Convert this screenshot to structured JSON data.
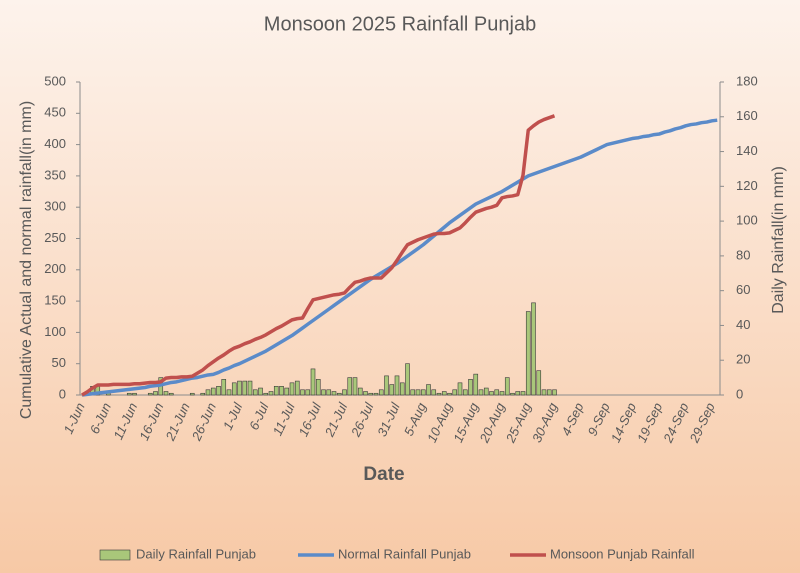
{
  "chart_data": {
    "type": "combo",
    "title": "Monsoon 2025 Rainfall Punjab",
    "x_label": "Date",
    "y_label": "Cumulative  Actual and normal rainfall(in mm)",
    "y2_label": "Daily Rainfall(in mm)",
    "categories": [
      "1-Jun",
      null,
      null,
      null,
      null,
      "6-Jun",
      null,
      null,
      null,
      null,
      "11-Jun",
      null,
      null,
      null,
      null,
      "16-Jun",
      null,
      null,
      null,
      null,
      "21-Jun",
      null,
      null,
      null,
      null,
      "26-Jun",
      null,
      null,
      null,
      null,
      "1-Jul",
      null,
      null,
      null,
      null,
      "6-Jul",
      null,
      null,
      null,
      null,
      "11-Jul",
      null,
      null,
      null,
      null,
      "16-Jul",
      null,
      null,
      null,
      null,
      "21-Jul",
      null,
      null,
      null,
      null,
      "26-Jul",
      null,
      null,
      null,
      null,
      "31-Jul",
      null,
      null,
      null,
      null,
      "5-Aug",
      null,
      null,
      null,
      null,
      "10-Aug",
      null,
      null,
      null,
      null,
      "15-Aug",
      null,
      null,
      null,
      null,
      "20-Aug",
      null,
      null,
      null,
      null,
      "25-Aug",
      null,
      null,
      null,
      null,
      "30-Aug",
      null,
      null,
      null,
      null,
      "4-Sep",
      null,
      null,
      null,
      null,
      "9-Sep",
      null,
      null,
      null,
      null,
      "14-Sep",
      null,
      null,
      null,
      null,
      "19-Sep",
      null,
      null,
      null,
      null,
      "24-Sep",
      null,
      null,
      null,
      null,
      "29-Sep",
      null
    ],
    "ylim": [
      0,
      500
    ],
    "yticks": [
      0,
      50,
      100,
      150,
      200,
      250,
      300,
      350,
      400,
      450,
      500
    ],
    "y2lim": [
      0,
      180
    ],
    "y2ticks": [
      0,
      20,
      40,
      60,
      80,
      100,
      120,
      140,
      160,
      180
    ],
    "legend": "bottom",
    "series": [
      {
        "name": "Daily Rainfall Punjab",
        "type": "bar",
        "axis": "y2",
        "color": "#a9c77a",
        "values": [
          0,
          0,
          5,
          5,
          0,
          1,
          0,
          0,
          0,
          1,
          1,
          0,
          0,
          1,
          2,
          10,
          2,
          1,
          0,
          0,
          0,
          1,
          0,
          1,
          3,
          4,
          5,
          9,
          3,
          7,
          8,
          8,
          8,
          3,
          4,
          1,
          2,
          5,
          5,
          4,
          7,
          8,
          3,
          3,
          15,
          9,
          3,
          3,
          2,
          1,
          3,
          10,
          10,
          4,
          2,
          1,
          1,
          3,
          11,
          6,
          11,
          7,
          18,
          3,
          3,
          3,
          6,
          3,
          1,
          2,
          1,
          3,
          7,
          3,
          9,
          12,
          3,
          4,
          2,
          3,
          2,
          10,
          1,
          2,
          2,
          48,
          53,
          14,
          3,
          3,
          3,
          null,
          null,
          null,
          null,
          null,
          null,
          null,
          null,
          null,
          null,
          null,
          null,
          null,
          null,
          null,
          null,
          null,
          null,
          null,
          null,
          null,
          null,
          null,
          null,
          null,
          null,
          null,
          null,
          null,
          null,
          null
        ]
      },
      {
        "name": "Normal Rainfall Punjab",
        "type": "line",
        "color": "#5b8bc9",
        "values": [
          0,
          1,
          2,
          3,
          4,
          5,
          6,
          7,
          8,
          9,
          10,
          11,
          12,
          14,
          15,
          16,
          18,
          20,
          21,
          23,
          25,
          27,
          28,
          30,
          32,
          33,
          36,
          40,
          43,
          47,
          50,
          54,
          58,
          62,
          66,
          70,
          75,
          80,
          85,
          90,
          95,
          101,
          107,
          113,
          119,
          125,
          131,
          137,
          143,
          149,
          155,
          161,
          167,
          173,
          179,
          185,
          190,
          195,
          200,
          205,
          210,
          216,
          222,
          228,
          234,
          240,
          247,
          254,
          261,
          268,
          275,
          281,
          287,
          293,
          299,
          305,
          309,
          313,
          317,
          321,
          325,
          330,
          335,
          340,
          345,
          350,
          353,
          356,
          359,
          362,
          365,
          368,
          371,
          374,
          377,
          380,
          384,
          388,
          392,
          396,
          400,
          402,
          404,
          406,
          408,
          410,
          411,
          413,
          414,
          416,
          417,
          420,
          422,
          425,
          427,
          430,
          432,
          433,
          435,
          436,
          438,
          439
        ]
      },
      {
        "name": "Monsoon Punjab Rainfall",
        "type": "line",
        "color": "#c0504d",
        "values": [
          0,
          5,
          11,
          16,
          16,
          16,
          17,
          17,
          17,
          17,
          18,
          18,
          19,
          20,
          20,
          21,
          27,
          28,
          28,
          29,
          29,
          30,
          35,
          40,
          47,
          53,
          59,
          64,
          70,
          75,
          78,
          82,
          85,
          89,
          92,
          96,
          101,
          106,
          110,
          115,
          120,
          122,
          123,
          138,
          152,
          154,
          156,
          158,
          160,
          161,
          163,
          172,
          180,
          182,
          185,
          187,
          187,
          187,
          195,
          203,
          215,
          228,
          240,
          244,
          248,
          251,
          254,
          257,
          258,
          258,
          259,
          263,
          267,
          275,
          284,
          292,
          295,
          298,
          300,
          303,
          315,
          317,
          318,
          320,
          351,
          423,
          430,
          436,
          440,
          443,
          446,
          null,
          null,
          null,
          null,
          null,
          null,
          null,
          null,
          null,
          null,
          null,
          null,
          null,
          null,
          null,
          null,
          null,
          null,
          null,
          null,
          null,
          null,
          null,
          null,
          null,
          null,
          null,
          null,
          null,
          null,
          null
        ]
      }
    ]
  }
}
